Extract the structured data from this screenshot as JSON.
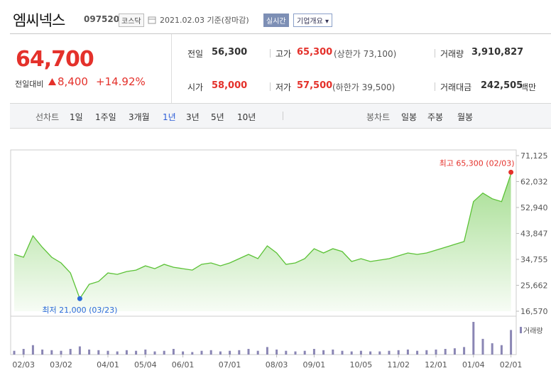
{
  "header": {
    "name": "엠씨넥스",
    "code": "097520",
    "market": "코스닥",
    "date": "2021.02.03 기준(장마감)",
    "realtime": "실시간",
    "company": "기업개요 ▾"
  },
  "quote": {
    "price": "64,700",
    "change_label": "전일대비",
    "change": "8,400",
    "change_pct": "+14.92%",
    "stats": [
      {
        "label": "전일",
        "value": "56,300"
      },
      {
        "label": "고가",
        "value": "65,300",
        "note": "(상한가 73,100)"
      },
      {
        "label": "거래량",
        "value": "3,910,827"
      },
      {
        "label": "시가",
        "value": "58,000"
      },
      {
        "label": "저가",
        "value": "57,500",
        "note": "(하한가 39,500)"
      },
      {
        "label": "거래대금",
        "value": "242,505",
        "note": "백만"
      }
    ]
  },
  "tabs": {
    "line_label": "선차트",
    "line": [
      "1일",
      "1주일",
      "3개월",
      "1년",
      "3년",
      "5년",
      "10년"
    ],
    "candle_label": "봉차트",
    "candle": [
      "일봉",
      "주봉",
      "월봉"
    ]
  },
  "chart_data": {
    "type": "line",
    "color": "#5bc236",
    "volume_color": "#8a86b4",
    "categories": [
      null,
      "02/03",
      null,
      null,
      null,
      "03/02",
      null,
      null,
      null,
      null,
      "04/01",
      null,
      null,
      null,
      "05/04",
      null,
      null,
      null,
      "06/01",
      null,
      null,
      null,
      null,
      "07/01",
      null,
      null,
      null,
      null,
      "08/03",
      null,
      null,
      null,
      "09/01",
      null,
      null,
      null,
      null,
      "10/05",
      null,
      null,
      null,
      "11/02",
      null,
      null,
      null,
      "12/01",
      null,
      null,
      null,
      "01/04",
      null,
      null,
      null,
      "02/01"
    ],
    "values": [
      36500,
      35500,
      43000,
      39000,
      35500,
      33500,
      30000,
      21000,
      26000,
      27000,
      30000,
      29500,
      30500,
      31000,
      32500,
      31500,
      33000,
      32000,
      31500,
      31000,
      33000,
      33500,
      32500,
      33500,
      35000,
      36500,
      35000,
      39500,
      37000,
      33000,
      33500,
      35000,
      38500,
      37000,
      38500,
      37500,
      34000,
      35000,
      34000,
      34500,
      35000,
      36000,
      37000,
      36500,
      37000,
      38000,
      39000,
      40000,
      41000,
      55000,
      58000,
      56000,
      55000,
      64700
    ],
    "volume": {
      "name": "거래량",
      "values": [
        600000,
        900000,
        1500000,
        800000,
        700000,
        600000,
        900000,
        1300000,
        800000,
        700000,
        600000,
        500000,
        700000,
        600000,
        800000,
        500000,
        600000,
        900000,
        500000,
        400000,
        600000,
        700000,
        500000,
        600000,
        700000,
        900000,
        600000,
        1200000,
        800000,
        600000,
        500000,
        600000,
        900000,
        700000,
        800000,
        600000,
        500000,
        600000,
        500000,
        500000,
        600000,
        700000,
        800000,
        600000,
        700000,
        800000,
        900000,
        1000000,
        1200000,
        5200000,
        2500000,
        1800000,
        1500000,
        3910827
      ]
    },
    "ylim": [
      16570,
      71125
    ],
    "yticks": [
      {
        "value": 16570,
        "label": "16,570"
      },
      {
        "value": 25662,
        "label": "25,662"
      },
      {
        "value": 34755,
        "label": "34,755"
      },
      {
        "value": 43847,
        "label": "43,847"
      },
      {
        "value": 52940,
        "label": "52,940"
      },
      {
        "value": 62032,
        "label": "62,032"
      },
      {
        "value": 71125,
        "label": "71,125"
      }
    ],
    "high": {
      "label": "최고 65,300 (02/03)",
      "value": 65300
    },
    "low": {
      "label": "최저 21,000 (03/23)",
      "value": 21000
    }
  }
}
